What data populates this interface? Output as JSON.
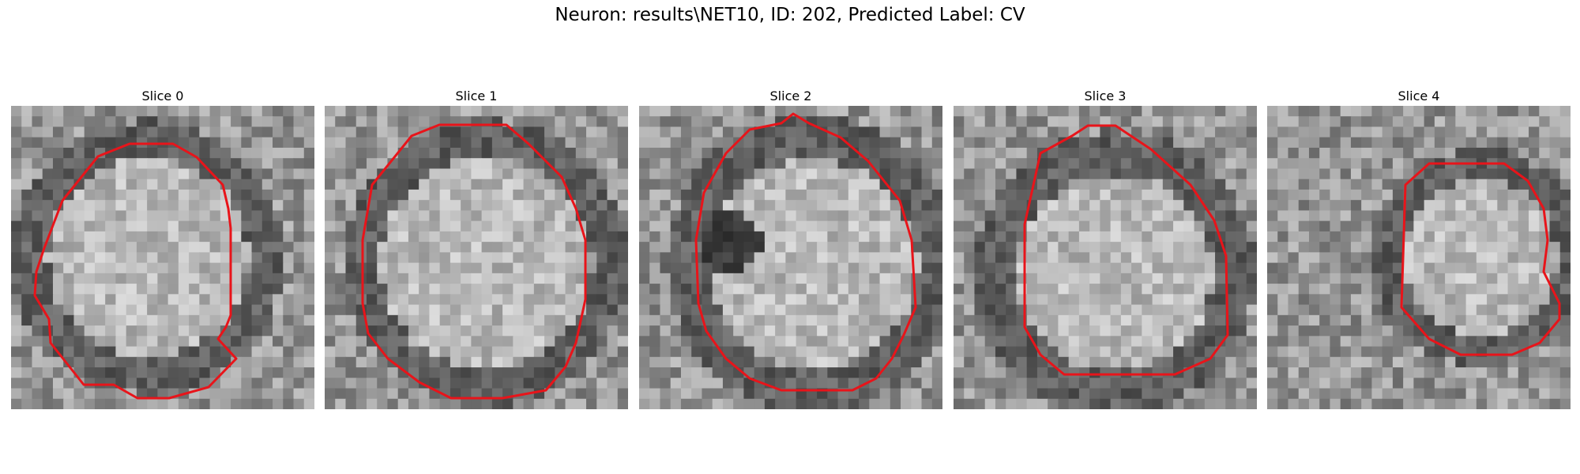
{
  "figure": {
    "title": "Neuron: results\\NET10, ID: 202, Predicted Label: CV"
  },
  "slices": [
    {
      "label": "Slice 0"
    },
    {
      "label": "Slice 1"
    },
    {
      "label": "Slice 2"
    },
    {
      "label": "Slice 3"
    },
    {
      "label": "Slice 4"
    }
  ],
  "contour_color": "#e8141a"
}
